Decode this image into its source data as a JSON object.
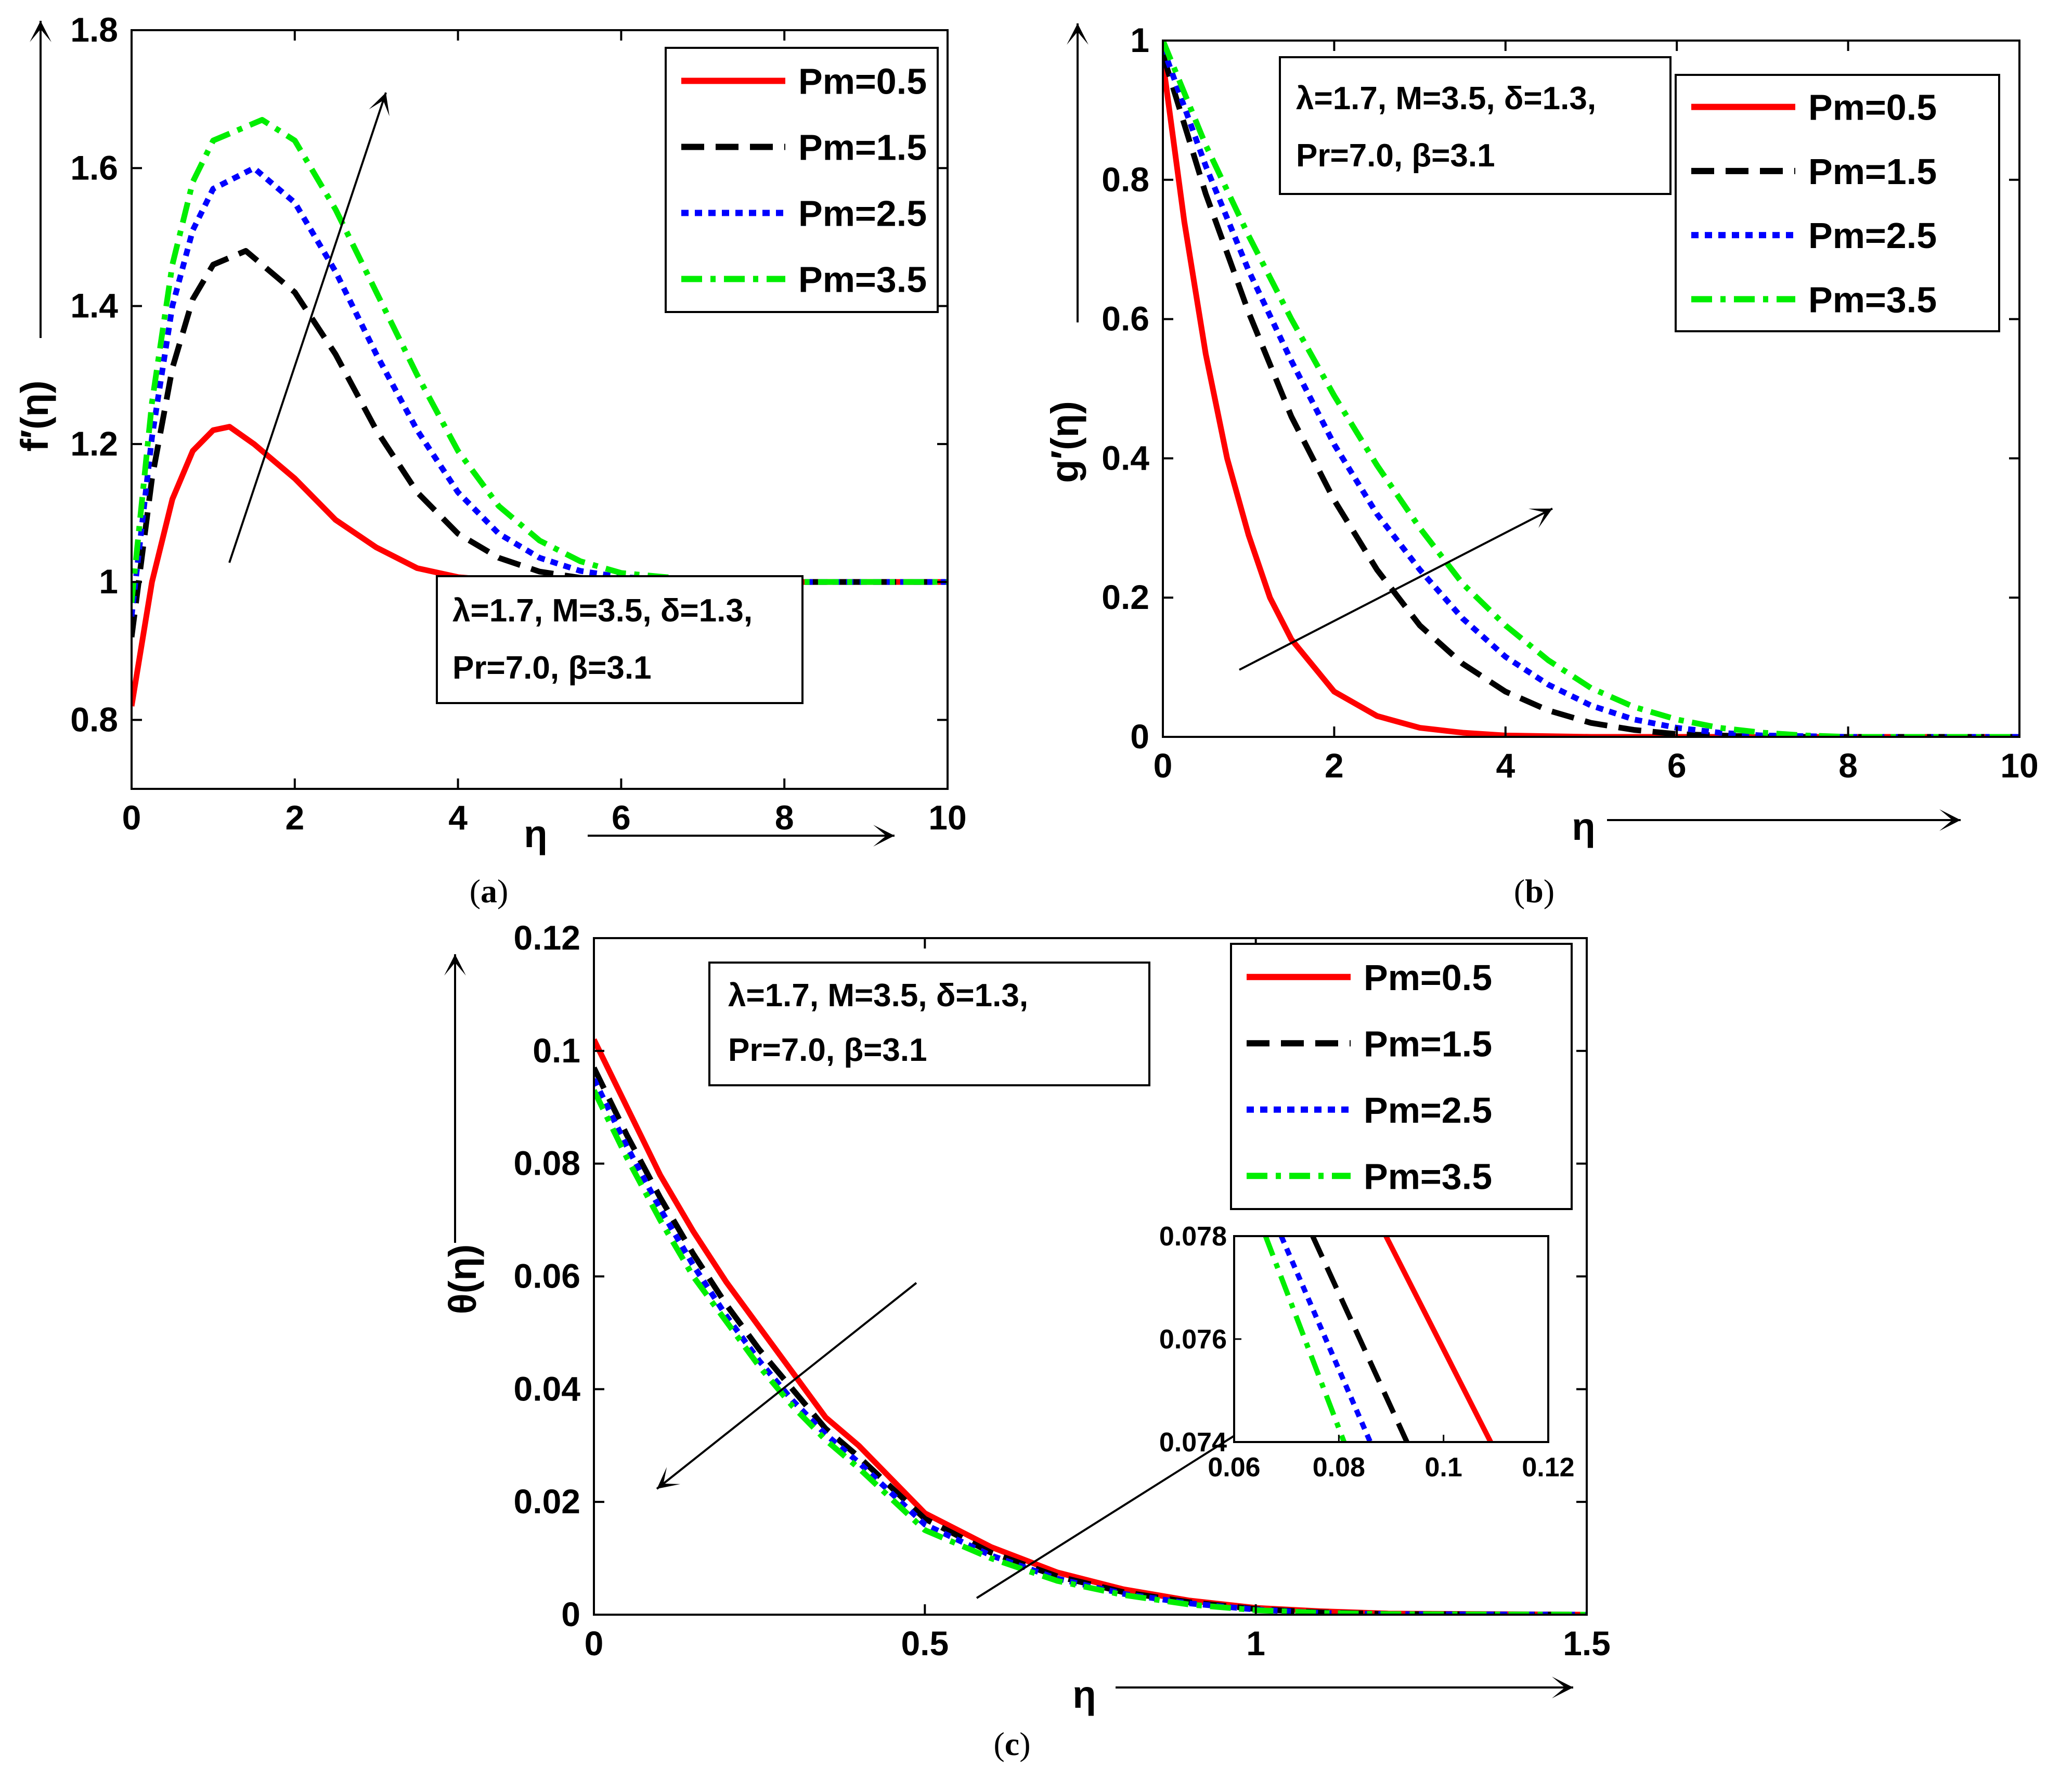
{
  "colors": {
    "pm05": "#ff0000",
    "pm15": "#000000",
    "pm25": "#0000ff",
    "pm35": "#00ee00"
  },
  "chart_data": [
    {
      "id": "a",
      "type": "line",
      "caption": "a",
      "ylabel": "f′(η)",
      "xlabel": "η",
      "xlim": [
        0,
        10
      ],
      "ylim": [
        0.7,
        1.8
      ],
      "xticks": [
        "0",
        "2",
        "4",
        "6",
        "8",
        "10"
      ],
      "yticks": [
        "0.8",
        "1",
        "1.2",
        "1.4",
        "1.6",
        "1.8"
      ],
      "legend_position": "top-right",
      "params_position": "lower-right",
      "params": [
        "λ=1.7, M=3.5, δ=1.3,",
        "Pr=7.0, β=3.1"
      ],
      "trend_arrow": "increasing Pm",
      "series": [
        {
          "name": "Pm=0.5",
          "style": "solid",
          "color": "#ff0000",
          "x": [
            0,
            0.25,
            0.5,
            0.75,
            1.0,
            1.2,
            1.5,
            2.0,
            2.5,
            3.0,
            3.5,
            4.0,
            4.5,
            5.0,
            6.0,
            7.0,
            8.0,
            10.0
          ],
          "y": [
            0.82,
            1.0,
            1.12,
            1.19,
            1.22,
            1.225,
            1.2,
            1.15,
            1.09,
            1.05,
            1.02,
            1.007,
            1.002,
            1.0,
            1.0,
            1.0,
            1.0,
            1.0
          ]
        },
        {
          "name": "Pm=1.5",
          "style": "dashed",
          "color": "#000000",
          "x": [
            0,
            0.25,
            0.5,
            0.75,
            1.0,
            1.4,
            2.0,
            2.5,
            3.0,
            3.5,
            4.0,
            4.5,
            5.0,
            5.5,
            6.0,
            7.0,
            8.0,
            10.0
          ],
          "y": [
            0.92,
            1.15,
            1.31,
            1.41,
            1.46,
            1.48,
            1.42,
            1.33,
            1.22,
            1.13,
            1.07,
            1.035,
            1.015,
            1.006,
            1.002,
            1.0,
            1.0,
            1.0
          ]
        },
        {
          "name": "Pm=2.5",
          "style": "dotted",
          "color": "#0000ff",
          "x": [
            0,
            0.25,
            0.5,
            0.75,
            1.0,
            1.5,
            2.0,
            2.5,
            3.0,
            3.5,
            4.0,
            4.5,
            5.0,
            5.5,
            6.0,
            7.0,
            8.0,
            10.0
          ],
          "y": [
            0.95,
            1.21,
            1.4,
            1.51,
            1.57,
            1.6,
            1.55,
            1.45,
            1.33,
            1.22,
            1.13,
            1.07,
            1.035,
            1.016,
            1.007,
            1.001,
            1.0,
            1.0
          ]
        },
        {
          "name": "Pm=3.5",
          "style": "dashdot",
          "color": "#00ee00",
          "x": [
            0,
            0.25,
            0.5,
            0.75,
            1.0,
            1.6,
            2.0,
            2.5,
            3.0,
            3.5,
            4.0,
            4.5,
            5.0,
            5.5,
            6.0,
            7.0,
            8.0,
            10.0
          ],
          "y": [
            0.97,
            1.26,
            1.46,
            1.58,
            1.64,
            1.67,
            1.64,
            1.54,
            1.42,
            1.3,
            1.19,
            1.11,
            1.06,
            1.03,
            1.013,
            1.002,
            1.0,
            1.0
          ]
        }
      ]
    },
    {
      "id": "b",
      "type": "line",
      "caption": "b",
      "ylabel": "g′(η)",
      "xlabel": "η",
      "xlim": [
        0,
        10
      ],
      "ylim": [
        0,
        1
      ],
      "xticks": [
        "0",
        "2",
        "4",
        "6",
        "8",
        "10"
      ],
      "yticks": [
        "0",
        "0.2",
        "0.4",
        "0.6",
        "0.8",
        "1"
      ],
      "legend_position": "top-right",
      "params_position": "top-left",
      "params": [
        "λ=1.7, M=3.5, δ=1.3,",
        "Pr=7.0, β=3.1"
      ],
      "trend_arrow": "increasing Pm",
      "series": [
        {
          "name": "Pm=0.5",
          "style": "solid",
          "color": "#ff0000",
          "x": [
            0,
            0.25,
            0.5,
            0.75,
            1.0,
            1.25,
            1.5,
            2.0,
            2.5,
            3.0,
            3.5,
            4.0,
            5.0,
            6.0,
            8.0,
            10.0
          ],
          "y": [
            0.97,
            0.74,
            0.55,
            0.4,
            0.29,
            0.2,
            0.14,
            0.065,
            0.03,
            0.013,
            0.006,
            0.002,
            0,
            0,
            0,
            0
          ]
        },
        {
          "name": "Pm=1.5",
          "style": "dashed",
          "color": "#000000",
          "x": [
            0,
            0.5,
            1.0,
            1.5,
            2.0,
            2.5,
            3.0,
            3.5,
            4.0,
            4.5,
            5.0,
            5.5,
            6.0,
            7.0,
            8.0,
            10.0
          ],
          "y": [
            0.98,
            0.78,
            0.61,
            0.46,
            0.34,
            0.24,
            0.16,
            0.105,
            0.065,
            0.038,
            0.02,
            0.01,
            0.004,
            0,
            0,
            0
          ]
        },
        {
          "name": "Pm=2.5",
          "style": "dotted",
          "color": "#0000ff",
          "x": [
            0,
            0.5,
            1.0,
            1.5,
            2.0,
            2.5,
            3.0,
            3.5,
            4.0,
            4.5,
            5.0,
            5.5,
            6.0,
            6.5,
            7.0,
            8.0,
            10.0
          ],
          "y": [
            0.99,
            0.82,
            0.67,
            0.54,
            0.42,
            0.32,
            0.24,
            0.17,
            0.115,
            0.075,
            0.045,
            0.025,
            0.013,
            0.006,
            0.002,
            0,
            0
          ]
        },
        {
          "name": "Pm=3.5",
          "style": "dashdot",
          "color": "#00ee00",
          "x": [
            0,
            0.5,
            1.0,
            1.5,
            2.0,
            2.5,
            3.0,
            3.5,
            4.0,
            4.5,
            5.0,
            5.5,
            6.0,
            6.5,
            7.0,
            7.5,
            8.0,
            10.0
          ],
          "y": [
            1.0,
            0.85,
            0.72,
            0.6,
            0.49,
            0.39,
            0.3,
            0.22,
            0.16,
            0.11,
            0.07,
            0.043,
            0.025,
            0.013,
            0.006,
            0.002,
            0,
            0
          ]
        }
      ]
    },
    {
      "id": "c",
      "type": "line",
      "caption": "c",
      "ylabel": "θ(η)",
      "xlabel": "η",
      "xlim": [
        0,
        1.5
      ],
      "ylim": [
        0,
        0.12
      ],
      "xticks": [
        "0",
        "0.5",
        "1",
        "1.5"
      ],
      "yticks": [
        "0",
        "0.02",
        "0.04",
        "0.06",
        "0.08",
        "0.1",
        "0.12"
      ],
      "legend_position": "top-right",
      "params_position": "top-left",
      "params": [
        "λ=1.7, M=3.5, δ=1.3,",
        "Pr=7.0, β=3.1"
      ],
      "trend_arrow": "increasing Pm",
      "series": [
        {
          "name": "Pm=0.5",
          "style": "solid",
          "color": "#ff0000",
          "x": [
            0,
            0.05,
            0.1,
            0.15,
            0.2,
            0.25,
            0.3,
            0.35,
            0.4,
            0.5,
            0.6,
            0.7,
            0.8,
            0.9,
            1.0,
            1.1,
            1.2,
            1.5
          ],
          "y": [
            0.102,
            0.09,
            0.078,
            0.068,
            0.059,
            0.051,
            0.043,
            0.035,
            0.03,
            0.018,
            0.012,
            0.0075,
            0.0045,
            0.0025,
            0.0012,
            0.0006,
            0.0002,
            0
          ]
        },
        {
          "name": "Pm=1.5",
          "style": "dashed",
          "color": "#000000",
          "x": [
            0,
            0.05,
            0.1,
            0.15,
            0.2,
            0.25,
            0.3,
            0.35,
            0.4,
            0.5,
            0.6,
            0.7,
            0.8,
            0.9,
            1.0,
            1.1,
            1.2,
            1.5
          ],
          "y": [
            0.097,
            0.085,
            0.074,
            0.064,
            0.055,
            0.047,
            0.04,
            0.033,
            0.028,
            0.017,
            0.011,
            0.0068,
            0.004,
            0.0022,
            0.001,
            0.0004,
            0.0001,
            0
          ]
        },
        {
          "name": "Pm=2.5",
          "style": "dotted",
          "color": "#0000ff",
          "x": [
            0,
            0.05,
            0.1,
            0.15,
            0.2,
            0.25,
            0.3,
            0.35,
            0.4,
            0.5,
            0.6,
            0.7,
            0.8,
            0.9,
            1.0,
            1.1,
            1.2,
            1.5
          ],
          "y": [
            0.095,
            0.083,
            0.072,
            0.062,
            0.053,
            0.045,
            0.038,
            0.032,
            0.027,
            0.016,
            0.0105,
            0.0064,
            0.0037,
            0.002,
            0.0009,
            0.0003,
            0.0001,
            0
          ]
        },
        {
          "name": "Pm=3.5",
          "style": "dashdot",
          "color": "#00ee00",
          "x": [
            0,
            0.05,
            0.1,
            0.15,
            0.2,
            0.25,
            0.3,
            0.35,
            0.4,
            0.5,
            0.6,
            0.7,
            0.8,
            0.9,
            1.0,
            1.1,
            1.2,
            1.5
          ],
          "y": [
            0.093,
            0.081,
            0.07,
            0.06,
            0.052,
            0.044,
            0.037,
            0.031,
            0.026,
            0.015,
            0.01,
            0.006,
            0.0035,
            0.0018,
            0.0008,
            0.0003,
            0.0001,
            0
          ]
        }
      ],
      "inset": {
        "xlim": [
          0.06,
          0.12
        ],
        "ylim": [
          0.074,
          0.078
        ],
        "xticks": [
          "0.06",
          "0.08",
          "0.1",
          "0.12"
        ],
        "yticks": [
          "0.074",
          "0.076",
          "0.078"
        ],
        "series": [
          {
            "name": "Pm=0.5",
            "style": "solid",
            "color": "#ff0000",
            "x": [
              0.089,
              0.109
            ],
            "y": [
              0.078,
              0.074
            ]
          },
          {
            "name": "Pm=1.5",
            "style": "dashed",
            "color": "#000000",
            "x": [
              0.075,
              0.093
            ],
            "y": [
              0.078,
              0.074
            ]
          },
          {
            "name": "Pm=2.5",
            "style": "dotted",
            "color": "#0000ff",
            "x": [
              0.069,
              0.086
            ],
            "y": [
              0.078,
              0.074
            ]
          },
          {
            "name": "Pm=3.5",
            "style": "dashdot",
            "color": "#00ee00",
            "x": [
              0.066,
              0.081
            ],
            "y": [
              0.078,
              0.074
            ]
          }
        ]
      }
    }
  ]
}
